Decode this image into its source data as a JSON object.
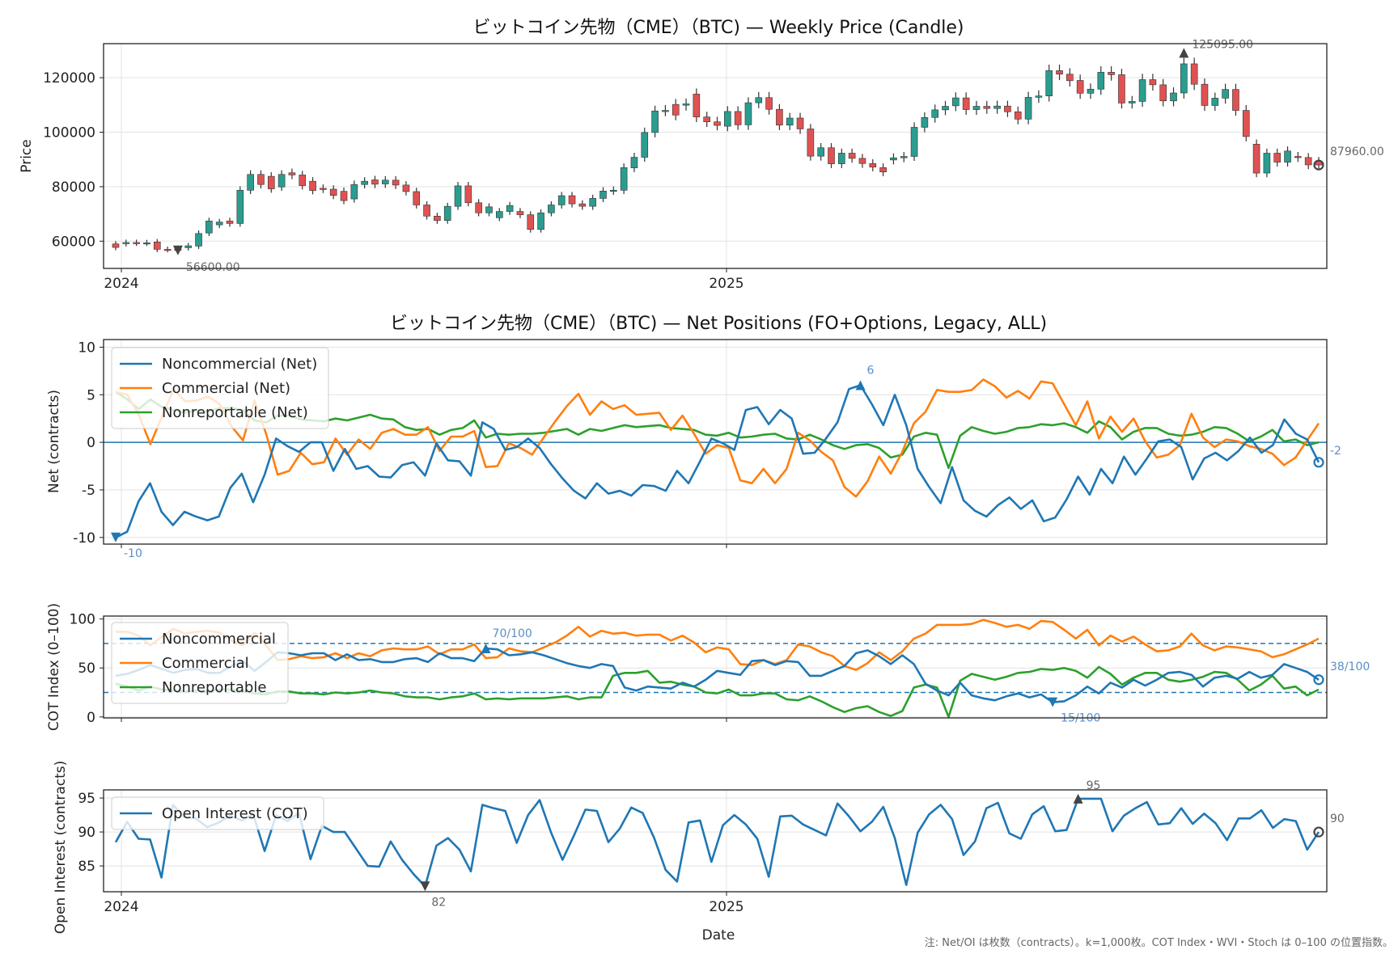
{
  "note": "注: Net/OI は枚数（contracts）。k=1,000枚。COT Index・WVI・Stoch は 0–100 の位置指数。",
  "colors": {
    "up": "#2a9d8f",
    "down": "#e05252",
    "noncommercial": "#1f77b4",
    "commercial": "#ff7f0e",
    "nonreportable": "#2ca02c",
    "grid": "#e3e3e3",
    "annotation": "#5b8fc7"
  },
  "chart_data": [
    {
      "type": "candlestick",
      "title": "ビットコイン先物（CME）（BTC) — Weekly Price (Candle)",
      "ylabel": "Price",
      "xlabel": "",
      "x_ticks": [
        "2024",
        "2025"
      ],
      "y_ticks": [
        "60000",
        "80000",
        "100000",
        "120000"
      ],
      "ylim": [
        50000,
        132500
      ],
      "grid": true,
      "candles_close": [
        57700,
        59500,
        59300,
        59400,
        57000,
        56935,
        56600,
        58300,
        62800,
        67400,
        67000,
        66500,
        78700,
        84500,
        80800,
        79200,
        84500,
        84300,
        80400,
        78600,
        79100,
        76800,
        74900,
        80800,
        82000,
        80900,
        82400,
        80600,
        78200,
        73300,
        69200,
        67600,
        72800,
        80300,
        74100,
        70400,
        72600,
        70900,
        73100,
        69700,
        64300,
        70400,
        73300,
        76700,
        73700,
        72800,
        75700,
        78400,
        78700,
        87000,
        90800,
        99900,
        107800,
        108000,
        106300,
        110400,
        105600,
        103800,
        102500,
        107600,
        102700,
        110800,
        112700,
        108400,
        102600,
        105200,
        101200,
        91200,
        94300,
        88400,
        92300,
        90400,
        88500,
        87200,
        85400,
        90600,
        91100,
        101800,
        105400,
        108200,
        109500,
        112600,
        108300,
        109500,
        108700,
        109600,
        107500,
        104800,
        112800,
        113300,
        122600,
        121300,
        118900,
        114300,
        115800,
        122000,
        121100,
        110700,
        111300,
        119300,
        117400,
        111500,
        114400,
        125095,
        117600,
        109800,
        112500,
        115700,
        108000,
        98400,
        85000,
        92300,
        89000,
        93100,
        90700,
        88000,
        87960
      ],
      "candles_open": [
        59000,
        59100,
        59500,
        59300,
        59700,
        57000,
        57300,
        57600,
        58200,
        63000,
        66000,
        67400,
        66500,
        78700,
        84500,
        83800,
        79900,
        85100,
        84300,
        82000,
        79400,
        79100,
        78300,
        75500,
        80800,
        82500,
        81000,
        82400,
        80600,
        78200,
        73300,
        69200,
        67600,
        72800,
        80300,
        74100,
        70400,
        68600,
        70900,
        70900,
        69700,
        64300,
        70400,
        73300,
        76700,
        73700,
        72800,
        75700,
        78400,
        78700,
        86900,
        90800,
        99900,
        107800,
        110200,
        109900,
        114000,
        105600,
        103800,
        102200,
        107600,
        102700,
        110800,
        112700,
        108400,
        102600,
        105200,
        101200,
        91200,
        94300,
        88400,
        92300,
        90400,
        88500,
        87000,
        89800,
        90600,
        91100,
        101800,
        105400,
        108200,
        109700,
        112600,
        108300,
        109500,
        108700,
        109600,
        107500,
        104800,
        112800,
        113300,
        122600,
        121300,
        119000,
        114300,
        115800,
        122000,
        121100,
        110700,
        111300,
        119300,
        117400,
        111500,
        114400,
        125095,
        117600,
        109800,
        112500,
        115700,
        108000,
        95600,
        85000,
        92300,
        89000,
        91100,
        90700,
        89300
      ]
    },
    {
      "type": "line",
      "title": "ビットコイン先物（CME）（BTC) — Net Positions (FO+Options, Legacy, ALL)",
      "ylabel": "Net (contracts)",
      "xlabel": "",
      "x_ticks": [
        "2024",
        "2025"
      ],
      "y_ticks": [
        "-10",
        "-5",
        "0",
        "5",
        "10"
      ],
      "ylim": [
        -10.7,
        10.8
      ],
      "zero_line": true,
      "grid": true,
      "legend_position": "upper-left",
      "annotations": [
        "-10",
        "6",
        "-2"
      ],
      "series": [
        {
          "name": "Noncommercial (Net)",
          "values": [
            -10,
            -9.4,
            -6.2,
            -4.3,
            -7.3,
            -8.7,
            -7.3,
            -7.8,
            -8.2,
            -7.8,
            -4.8,
            -3.3,
            -6.3,
            -3.4,
            0.4,
            -0.4,
            -1.0,
            0.0,
            0.0,
            -3.0,
            -0.7,
            -2.8,
            -2.5,
            -3.6,
            -3.7,
            -2.4,
            -2.1,
            -3.5,
            -0.1,
            -1.9,
            -2.0,
            -3.5,
            2.1,
            1.4,
            -0.8,
            -0.5,
            0.4,
            -0.6,
            -2.3,
            -3.8,
            -5.1,
            -5.9,
            -4.3,
            -5.4,
            -5.1,
            -5.6,
            -4.5,
            -4.6,
            -5.1,
            -3.0,
            -4.3,
            -2.0,
            0.4,
            -0.1,
            -0.8,
            3.4,
            3.7,
            1.9,
            3.4,
            2.5,
            -1.2,
            -1.1,
            0.4,
            2.1,
            5.6,
            6.0,
            4.0,
            1.8,
            5.0,
            1.8,
            -2.8,
            -4.7,
            -6.4,
            -2.6,
            -6.1,
            -7.2,
            -7.8,
            -6.6,
            -5.8,
            -7.0,
            -6.1,
            -8.3,
            -7.9,
            -6.0,
            -3.6,
            -5.5,
            -2.8,
            -4.3,
            -1.5,
            -3.4,
            -1.7,
            0.1,
            0.3,
            -0.5,
            -3.9,
            -1.7,
            -1.1,
            -1.9,
            -0.9,
            0.5,
            -1.1,
            -0.3,
            2.4,
            0.9,
            0.3,
            -2.1
          ]
        },
        {
          "name": "Commercial (Net)",
          "values": [
            5.3,
            5.0,
            2.9,
            -0.2,
            2.7,
            5.6,
            4.3,
            4.4,
            4.8,
            4.0,
            1.7,
            0.2,
            4.4,
            0.9,
            -3.4,
            -3.0,
            -1.1,
            -2.3,
            -2.1,
            0.4,
            -1.3,
            0.3,
            -0.7,
            1.0,
            1.4,
            0.8,
            0.8,
            1.6,
            -0.9,
            0.6,
            0.6,
            1.2,
            -2.6,
            -2.5,
            -0.1,
            -0.6,
            -1.3,
            0.5,
            2.2,
            3.8,
            5.1,
            2.9,
            4.3,
            3.5,
            3.9,
            2.9,
            3.0,
            3.1,
            1.3,
            2.8,
            0.9,
            -1.2,
            -0.3,
            -0.6,
            -4.0,
            -4.3,
            -2.8,
            -4.3,
            -2.8,
            1.0,
            0.2,
            -1.0,
            -1.9,
            -4.7,
            -5.7,
            -4.1,
            -1.5,
            -3.3,
            -1.0,
            2.0,
            3.2,
            5.5,
            5.3,
            5.3,
            5.5,
            6.6,
            5.9,
            4.7,
            5.4,
            4.6,
            6.4,
            6.2,
            4.0,
            1.8,
            4.3,
            0.4,
            2.7,
            1.1,
            2.5,
            0.1,
            -1.6,
            -1.3,
            -0.3,
            3.0,
            0.5,
            -0.5,
            0.3,
            0.1,
            -0.4,
            -0.7,
            -1.2,
            -2.4,
            -1.6,
            0.2,
            2.0
          ]
        },
        {
          "name": "Nonreportable (Net)",
          "values": [
            5.3,
            4.5,
            3.5,
            4.5,
            3.7,
            3.4,
            3.1,
            3.4,
            3.2,
            3.6,
            3.6,
            3.4,
            2.3,
            2.1,
            2.8,
            2.8,
            2.4,
            2.3,
            2.2,
            2.5,
            2.3,
            2.6,
            2.9,
            2.5,
            2.4,
            1.6,
            1.3,
            1.4,
            0.8,
            1.3,
            1.5,
            2.3,
            0.5,
            0.9,
            0.8,
            0.9,
            0.9,
            1.0,
            1.2,
            1.4,
            0.8,
            1.4,
            1.2,
            1.5,
            1.8,
            1.6,
            1.7,
            1.8,
            1.5,
            1.4,
            1.3,
            0.8,
            0.7,
            1.0,
            0.5,
            0.6,
            0.8,
            0.9,
            0.4,
            0.3,
            0.8,
            0.3,
            -0.3,
            -0.7,
            -0.3,
            -0.2,
            -0.6,
            -1.6,
            -1.3,
            0.6,
            1.0,
            0.8,
            -2.7,
            0.7,
            1.6,
            1.2,
            0.9,
            1.1,
            1.5,
            1.6,
            1.9,
            1.8,
            2.0,
            1.6,
            1.0,
            2.2,
            1.6,
            0.3,
            1.1,
            1.5,
            1.5,
            0.9,
            0.7,
            0.8,
            1.1,
            1.6,
            1.5,
            0.9,
            0.1,
            0.6,
            1.3,
            0.1,
            0.3,
            -0.3,
            0.0
          ]
        }
      ]
    },
    {
      "type": "line",
      "title": "",
      "ylabel": "COT Index (0–100)",
      "xlabel": "",
      "x_ticks": [],
      "y_ticks": [
        "0",
        "50",
        "100"
      ],
      "ylim": [
        -1,
        103
      ],
      "thresholds": [
        75,
        25
      ],
      "grid": true,
      "legend_position": "upper-left",
      "annotations": [
        "70/100",
        "15/100",
        "38/100"
      ],
      "series": [
        {
          "name": "Noncommercial",
          "values": [
            42,
            44,
            48,
            53,
            49,
            45,
            48,
            49,
            45,
            45,
            52,
            57,
            47,
            56,
            66,
            65,
            63,
            65,
            65,
            58,
            64,
            58,
            59,
            56,
            56,
            59,
            60,
            56,
            65,
            60,
            60,
            57,
            70,
            69,
            63,
            64,
            66,
            63,
            59,
            55,
            52,
            50,
            54,
            52,
            30,
            27,
            31,
            30,
            29,
            35,
            31,
            38,
            47,
            45,
            43,
            57,
            58,
            53,
            57,
            56,
            42,
            42,
            47,
            52,
            65,
            68,
            62,
            54,
            63,
            54,
            34,
            27,
            22,
            35,
            22,
            19,
            17,
            21,
            24,
            20,
            23,
            15,
            16,
            22,
            31,
            24,
            35,
            30,
            38,
            32,
            38,
            45,
            46,
            43,
            31,
            40,
            42,
            39,
            46,
            40,
            43,
            54,
            50,
            46,
            38
          ]
        },
        {
          "name": "Commercial",
          "values": [
            87,
            87,
            83,
            73,
            82,
            90,
            85,
            87,
            88,
            86,
            78,
            73,
            86,
            73,
            58,
            59,
            62,
            60,
            61,
            65,
            60,
            65,
            62,
            68,
            70,
            69,
            69,
            72,
            64,
            69,
            69,
            74,
            60,
            61,
            70,
            67,
            66,
            71,
            76,
            83,
            92,
            82,
            88,
            85,
            86,
            83,
            84,
            84,
            78,
            83,
            76,
            66,
            71,
            69,
            54,
            53,
            58,
            54,
            58,
            74,
            72,
            66,
            62,
            52,
            48,
            55,
            66,
            58,
            67,
            80,
            85,
            94,
            94,
            94,
            95,
            99,
            96,
            92,
            94,
            90,
            98,
            97,
            89,
            80,
            89,
            73,
            83,
            77,
            82,
            74,
            67,
            68,
            72,
            85,
            73,
            68,
            72,
            71,
            69,
            67,
            61,
            64,
            69,
            74,
            80
          ]
        },
        {
          "name": "Nonreportable",
          "values": [
            34,
            31,
            27,
            31,
            28,
            27,
            26,
            27,
            26,
            28,
            28,
            27,
            24,
            23,
            26,
            26,
            24,
            24,
            23,
            25,
            24,
            25,
            27,
            25,
            24,
            21,
            20,
            20,
            18,
            20,
            21,
            24,
            18,
            19,
            18,
            19,
            19,
            19,
            20,
            21,
            18,
            20,
            20,
            42,
            45,
            45,
            47,
            35,
            36,
            33,
            31,
            25,
            24,
            28,
            22,
            22,
            24,
            24,
            18,
            17,
            21,
            16,
            10,
            5,
            9,
            11,
            5,
            1,
            6,
            30,
            33,
            30,
            0,
            37,
            44,
            41,
            38,
            41,
            45,
            46,
            49,
            48,
            50,
            47,
            40,
            51,
            44,
            33,
            40,
            45,
            45,
            38,
            36,
            38,
            41,
            46,
            45,
            38,
            27,
            33,
            42,
            29,
            31,
            22,
            28
          ]
        }
      ]
    },
    {
      "type": "line",
      "title": "",
      "ylabel": "Open Interest (contracts)",
      "xlabel": "Date",
      "x_ticks": [
        "2024",
        "2025"
      ],
      "y_ticks": [
        "85",
        "90",
        "95"
      ],
      "ylim": [
        81.2,
        96.2
      ],
      "grid": true,
      "legend_position": "upper-left",
      "annotations": [
        "82",
        "95",
        "90"
      ],
      "series": [
        {
          "name": "Open Interest (COT)",
          "values": [
            88.5,
            91.5,
            89.0,
            88.9,
            83.3,
            94.0,
            92.2,
            92.0,
            90.7,
            91.4,
            92.4,
            91.7,
            92.6,
            87.2,
            92.5,
            91.6,
            92.8,
            86.0,
            90.9,
            90.0,
            90.0,
            87.5,
            85.0,
            84.9,
            88.6,
            85.9,
            83.8,
            82.0,
            88.0,
            89.1,
            87.4,
            84.2,
            94.0,
            93.5,
            93.1,
            88.4,
            92.5,
            94.7,
            89.9,
            85.9,
            89.5,
            93.3,
            93.1,
            88.5,
            90.5,
            93.6,
            92.8,
            89.1,
            84.4,
            82.7,
            91.4,
            91.7,
            85.6,
            91.0,
            92.5,
            91.1,
            89.0,
            83.4,
            92.3,
            92.4,
            91.1,
            90.3,
            89.5,
            94.2,
            92.3,
            90.1,
            91.5,
            93.7,
            89.1,
            82.2,
            89.9,
            92.6,
            94.0,
            91.9,
            86.6,
            88.6,
            93.5,
            94.3,
            89.8,
            89.0,
            92.6,
            93.8,
            90.1,
            90.3,
            94.9,
            94.9,
            94.9,
            90.1,
            92.4,
            93.5,
            94.4,
            91.1,
            91.3,
            93.5,
            91.2,
            92.7,
            91.3,
            88.8,
            92.0,
            92.0,
            93.2,
            90.6,
            91.9,
            91.6,
            87.4,
            90.0
          ]
        }
      ]
    }
  ]
}
